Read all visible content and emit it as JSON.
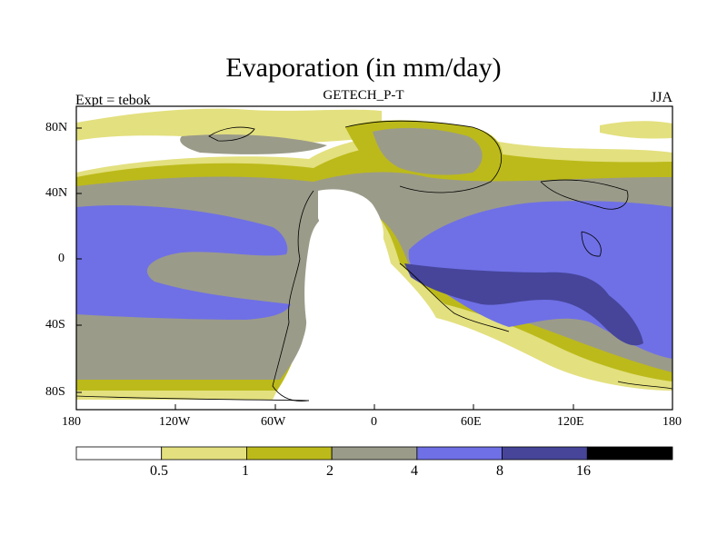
{
  "title": "Evaporation (in mm/day)",
  "left_label": "Expt = tebok",
  "center_label": "GETECH_P-T",
  "right_label": "JJA",
  "map": {
    "projection": "cylindrical-equidistant",
    "lon_range": [
      -180,
      180
    ],
    "lat_range": [
      -90,
      90
    ],
    "lon_ticks": [
      "180",
      "120W",
      "60W",
      "0",
      "60E",
      "120E",
      "180"
    ],
    "lat_ticks": [
      "80N",
      "40N",
      "0",
      "40S",
      "80S"
    ]
  },
  "colorbar": {
    "levels": [
      "0.5",
      "1",
      "2",
      "4",
      "8",
      "16"
    ],
    "colors": [
      "#ffffff",
      "#e3e07f",
      "#bcba1a",
      "#9b9b8a",
      "#6f70e6",
      "#46459a",
      "#000000"
    ]
  }
}
